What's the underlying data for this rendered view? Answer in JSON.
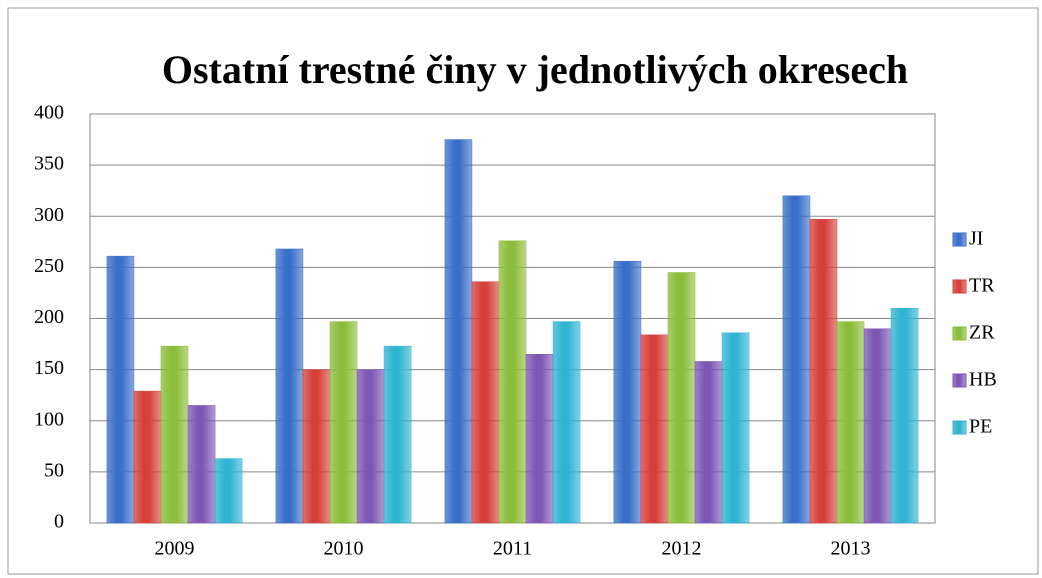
{
  "chart_data": {
    "type": "bar",
    "title": "Ostatní trestné činy v jednotlivých okresech",
    "categories": [
      "2009",
      "2010",
      "2011",
      "2012",
      "2013"
    ],
    "series": [
      {
        "name": "JI",
        "color": "#3a6fc9",
        "values": [
          261,
          268,
          375,
          256,
          320
        ]
      },
      {
        "name": "TR",
        "color": "#d6403a",
        "values": [
          129,
          150,
          236,
          184,
          297
        ]
      },
      {
        "name": "ZR",
        "color": "#8cbd3a",
        "values": [
          173,
          197,
          276,
          245,
          197
        ]
      },
      {
        "name": "HB",
        "color": "#7e57b5",
        "values": [
          115,
          150,
          165,
          158,
          190
        ]
      },
      {
        "name": "PE",
        "color": "#2fb4d1",
        "values": [
          63,
          173,
          197,
          186,
          210
        ]
      }
    ],
    "ylim": [
      0,
      400
    ],
    "yticks": [
      0,
      50,
      100,
      150,
      200,
      250,
      300,
      350,
      400
    ],
    "grid": true,
    "legend": "right"
  }
}
